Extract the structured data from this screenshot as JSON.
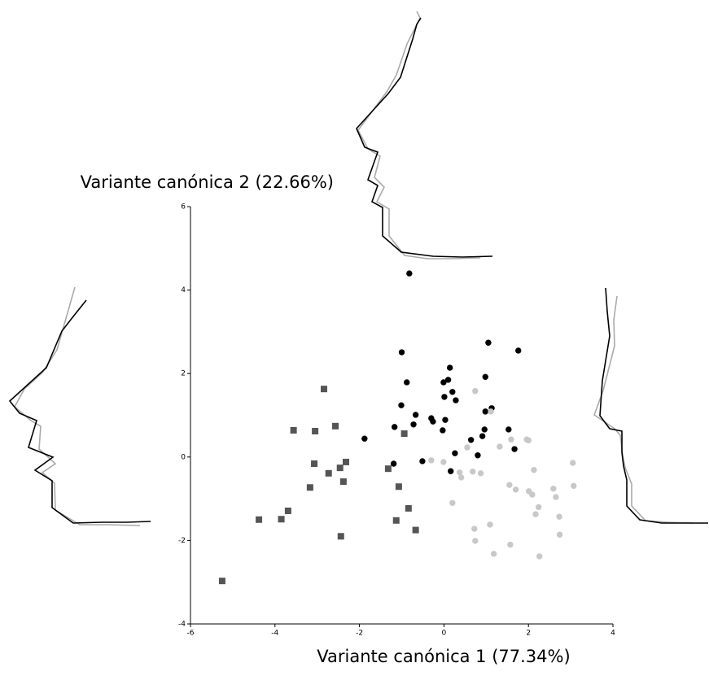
{
  "chart_data": {
    "type": "scatter",
    "x_label": "Variante canónica 1 (77.34%)",
    "y_label": "Variante canónica 2 (22.66%)",
    "xlim": [
      -6,
      4
    ],
    "ylim": [
      -4,
      6
    ],
    "xticks": [
      -6,
      -4,
      -2,
      0,
      2,
      4
    ],
    "yticks": [
      -4,
      -2,
      0,
      2,
      4,
      6
    ],
    "series": [
      {
        "color": "#555555",
        "marker": "square",
        "x": [
          -2.84,
          -3.56,
          -3.05,
          -2.57,
          -3.07,
          -2.73,
          -2.46,
          -2.32,
          -2.38,
          -3.17,
          -3.69,
          -3.85,
          -4.38,
          -2.44,
          -5.25,
          -1.32,
          -0.94,
          -1.07,
          -0.84,
          -1.13,
          -0.67
        ],
        "values": [
          1.63,
          0.64,
          0.62,
          0.74,
          -0.16,
          -0.39,
          -0.26,
          -0.12,
          -0.59,
          -0.73,
          -1.29,
          -1.49,
          -1.5,
          -1.9,
          -2.97,
          -0.28,
          0.56,
          -0.71,
          -1.23,
          -1.52,
          -1.75
        ]
      },
      {
        "color": "#000000",
        "marker": "circle",
        "x": [
          -0.82,
          -1.0,
          1.05,
          1.76,
          0.14,
          0.98,
          -0.88,
          -0.01,
          0.1,
          0.2,
          0.01,
          0.28,
          -1.01,
          1.13,
          0.98,
          -0.67,
          -0.72,
          -0.3,
          -0.26,
          0.03,
          -1.17,
          0.96,
          -1.88,
          -0.03,
          0.64,
          0.91,
          1.53,
          1.67,
          0.26,
          0.8,
          -1.19,
          -0.51,
          0.16
        ],
        "values": [
          4.4,
          2.51,
          2.74,
          2.55,
          2.14,
          1.92,
          1.79,
          1.79,
          1.85,
          1.56,
          1.44,
          1.36,
          1.24,
          1.17,
          1.09,
          1.01,
          0.78,
          0.93,
          0.85,
          0.89,
          0.72,
          0.66,
          0.44,
          0.64,
          0.41,
          0.5,
          0.66,
          0.19,
          0.09,
          0.04,
          -0.16,
          -0.1,
          -0.34
        ]
      },
      {
        "color": "#c8c8c8",
        "marker": "circle",
        "x": [
          0.74,
          1.11,
          1.59,
          1.96,
          2.0,
          0.55,
          1.32,
          -0.3,
          -0.01,
          0.37,
          0.68,
          0.87,
          0.41,
          2.13,
          3.05,
          3.07,
          1.55,
          1.7,
          2.01,
          2.09,
          2.59,
          2.65,
          2.24,
          2.17,
          2.73,
          0.2,
          1.09,
          0.72,
          0.74,
          1.57,
          2.74,
          1.18,
          2.26
        ],
        "values": [
          1.58,
          1.09,
          0.42,
          0.42,
          0.4,
          0.23,
          0.25,
          -0.08,
          -0.12,
          -0.37,
          -0.35,
          -0.39,
          -0.49,
          -0.31,
          -0.14,
          -0.69,
          -0.67,
          -0.78,
          -0.82,
          -0.9,
          -0.76,
          -0.96,
          -1.2,
          -1.37,
          -1.43,
          -1.1,
          -1.62,
          -1.72,
          -2.01,
          -2.1,
          -1.86,
          -2.32,
          -2.38
        ]
      }
    ]
  }
}
